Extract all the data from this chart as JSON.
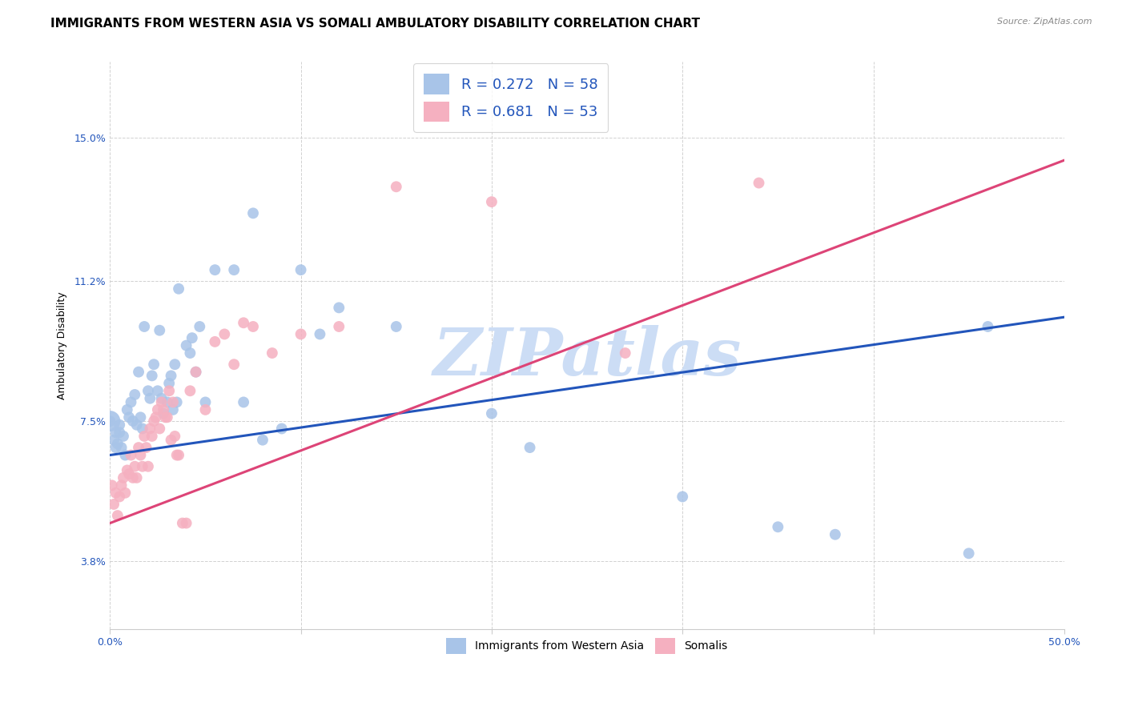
{
  "title": "IMMIGRANTS FROM WESTERN ASIA VS SOMALI AMBULATORY DISABILITY CORRELATION CHART",
  "source": "Source: ZipAtlas.com",
  "ylabel": "Ambulatory Disability",
  "ytick_labels": [
    "3.8%",
    "7.5%",
    "11.2%",
    "15.0%"
  ],
  "ytick_values": [
    0.038,
    0.075,
    0.112,
    0.15
  ],
  "xlim": [
    0.0,
    0.5
  ],
  "ylim": [
    0.02,
    0.17
  ],
  "watermark": "ZIPatlas",
  "blue_scatter_x": [
    0.0,
    0.002,
    0.003,
    0.003,
    0.004,
    0.005,
    0.005,
    0.006,
    0.007,
    0.008,
    0.009,
    0.01,
    0.011,
    0.012,
    0.013,
    0.014,
    0.015,
    0.016,
    0.017,
    0.018,
    0.02,
    0.021,
    0.022,
    0.023,
    0.025,
    0.026,
    0.027,
    0.028,
    0.03,
    0.031,
    0.032,
    0.033,
    0.034,
    0.035,
    0.036,
    0.04,
    0.042,
    0.043,
    0.045,
    0.047,
    0.05,
    0.055,
    0.065,
    0.07,
    0.075,
    0.08,
    0.09,
    0.1,
    0.11,
    0.12,
    0.15,
    0.2,
    0.22,
    0.3,
    0.35,
    0.38,
    0.45,
    0.46
  ],
  "blue_scatter_y": [
    0.075,
    0.07,
    0.072,
    0.068,
    0.069,
    0.074,
    0.072,
    0.068,
    0.071,
    0.066,
    0.078,
    0.076,
    0.08,
    0.075,
    0.082,
    0.074,
    0.088,
    0.076,
    0.073,
    0.1,
    0.083,
    0.081,
    0.087,
    0.09,
    0.083,
    0.099,
    0.081,
    0.077,
    0.08,
    0.085,
    0.087,
    0.078,
    0.09,
    0.08,
    0.11,
    0.095,
    0.093,
    0.097,
    0.088,
    0.1,
    0.08,
    0.115,
    0.115,
    0.08,
    0.13,
    0.07,
    0.073,
    0.115,
    0.098,
    0.105,
    0.1,
    0.077,
    0.068,
    0.055,
    0.047,
    0.045,
    0.04,
    0.1
  ],
  "pink_scatter_x": [
    0.001,
    0.002,
    0.003,
    0.004,
    0.005,
    0.006,
    0.007,
    0.008,
    0.009,
    0.01,
    0.011,
    0.012,
    0.013,
    0.014,
    0.015,
    0.016,
    0.017,
    0.018,
    0.019,
    0.02,
    0.021,
    0.022,
    0.023,
    0.024,
    0.025,
    0.026,
    0.027,
    0.028,
    0.029,
    0.03,
    0.031,
    0.032,
    0.033,
    0.034,
    0.035,
    0.036,
    0.038,
    0.04,
    0.042,
    0.045,
    0.05,
    0.055,
    0.06,
    0.065,
    0.07,
    0.075,
    0.085,
    0.1,
    0.12,
    0.15,
    0.2,
    0.27,
    0.34
  ],
  "pink_scatter_y": [
    0.058,
    0.053,
    0.056,
    0.05,
    0.055,
    0.058,
    0.06,
    0.056,
    0.062,
    0.061,
    0.066,
    0.06,
    0.063,
    0.06,
    0.068,
    0.066,
    0.063,
    0.071,
    0.068,
    0.063,
    0.073,
    0.071,
    0.075,
    0.076,
    0.078,
    0.073,
    0.08,
    0.078,
    0.076,
    0.076,
    0.083,
    0.07,
    0.08,
    0.071,
    0.066,
    0.066,
    0.048,
    0.048,
    0.083,
    0.088,
    0.078,
    0.096,
    0.098,
    0.09,
    0.101,
    0.1,
    0.093,
    0.098,
    0.1,
    0.137,
    0.133,
    0.093,
    0.138
  ],
  "blue_color": "#a8c4e8",
  "pink_color": "#f5b0c0",
  "blue_line_color": "#2255bb",
  "pink_line_color": "#dd4477",
  "background_color": "#ffffff",
  "grid_color": "#cccccc",
  "title_fontsize": 11,
  "axis_label_fontsize": 9,
  "tick_fontsize": 9,
  "watermark_color": "#ccddf5",
  "watermark_fontsize": 60,
  "blue_line_intercept": 0.066,
  "blue_line_slope": 0.073,
  "pink_line_intercept": 0.048,
  "pink_line_slope": 0.192
}
